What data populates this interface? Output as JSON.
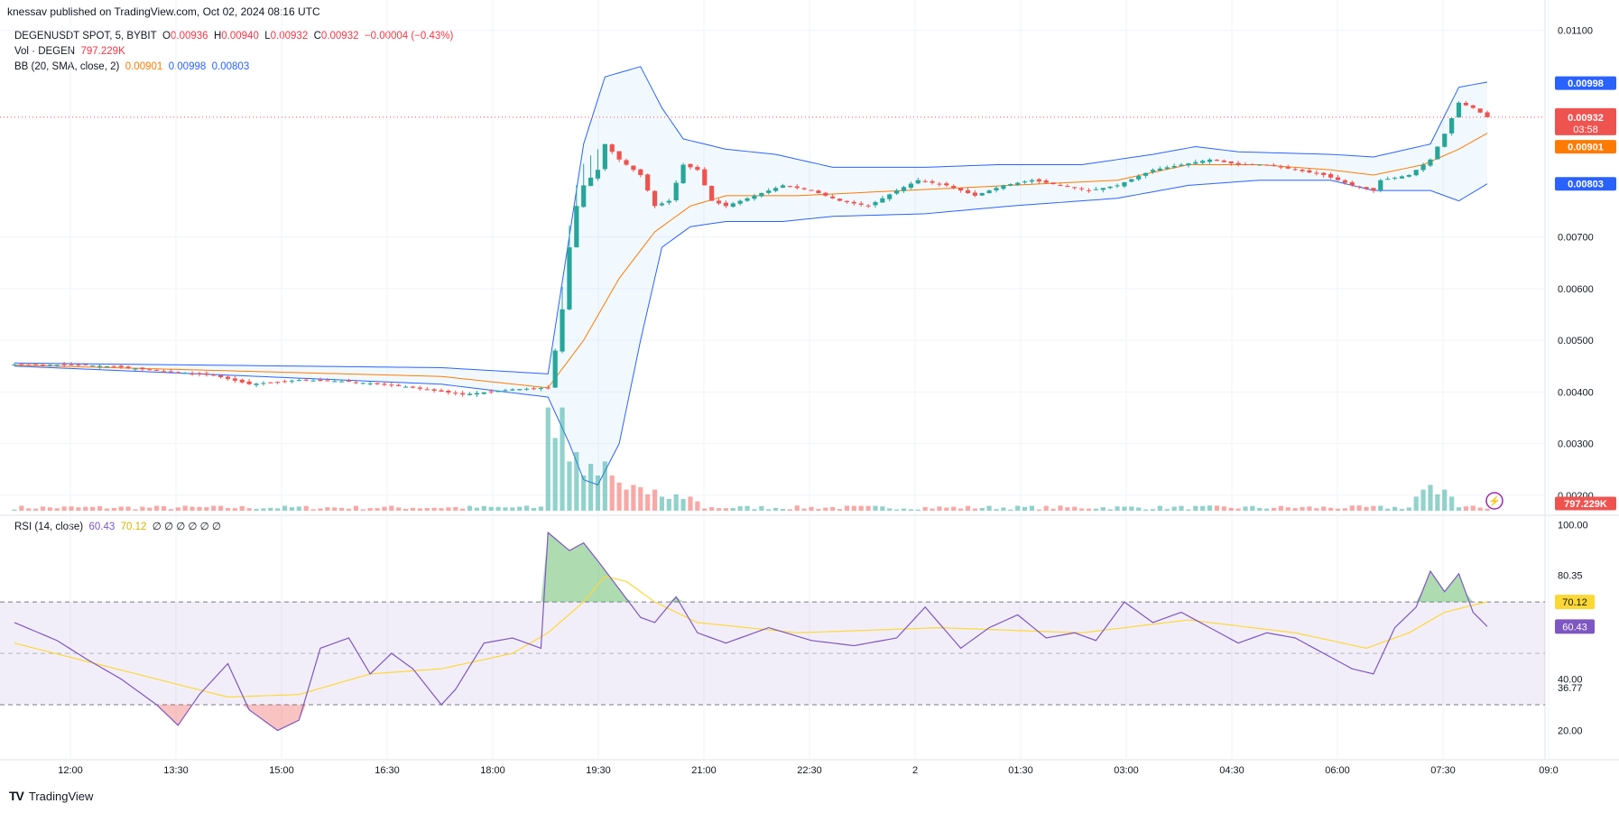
{
  "header": {
    "published_by": "knessav published on TradingView.com, Oct 02, 2024 08:16 UTC"
  },
  "legend": {
    "symbol": "DEGENUSDT SPOT, 5, BYBIT",
    "o_label": "O",
    "o": "0.00936",
    "h_label": "H",
    "h": "0.00940",
    "l_label": "L",
    "l": "0.00932",
    "c_label": "C",
    "c": "0.00932",
    "change": "−0.00004 (−0.43%)",
    "vol_label": "Vol · DEGEN",
    "vol": "797.229K",
    "bb_label": "BB (20, SMA, close, 2)",
    "bb_basis": "0.00901",
    "bb_upper": "0.00998",
    "bb_lower": "0.00803"
  },
  "rsi_legend": {
    "label": "RSI (14, close)",
    "rsi": "60.43",
    "ma": "70.12",
    "extra": "∅ ∅ ∅ ∅ ∅ ∅"
  },
  "footer": {
    "brand": "TradingView"
  },
  "colors": {
    "up": "#26a69a",
    "down": "#ef5350",
    "band": "#2962ff",
    "basis": "#ff7a00",
    "rsi": "#7e57c2",
    "rsi_ma": "#fdd835"
  },
  "chart_data": [
    {
      "type": "candlestick",
      "title": "DEGENUSDT SPOT, 5, BYBIT",
      "x_ticks": [
        "12:00",
        "13:30",
        "15:00",
        "16:30",
        "18:00",
        "19:30",
        "21:00",
        "22:30",
        "2",
        "01:30",
        "03:00",
        "04:30",
        "06:00",
        "07:30",
        "09:0"
      ],
      "y_ticks": [
        "0.01100",
        "0.00700",
        "0.00600",
        "0.00500",
        "0.00400",
        "0.00300",
        "0.00200"
      ],
      "ylim": [
        0.0017,
        0.0111
      ],
      "price_labels": {
        "upper": "0.00998",
        "last": "0.00932",
        "countdown": "03:58",
        "basis": "0.00901",
        "lower": "0.00803",
        "volume": "797.229K"
      },
      "close_anchors": [
        [
          0,
          0.00453
        ],
        [
          10,
          0.00452
        ],
        [
          15,
          0.00448
        ],
        [
          20,
          0.00441
        ],
        [
          28,
          0.00432
        ],
        [
          33,
          0.00415
        ],
        [
          40,
          0.00423
        ],
        [
          47,
          0.0042
        ],
        [
          55,
          0.0041
        ],
        [
          63,
          0.00395
        ],
        [
          70,
          0.00405
        ],
        [
          75,
          0.00408
        ],
        [
          76,
          0.0048
        ],
        [
          77,
          0.0056
        ],
        [
          78,
          0.0068
        ],
        [
          79,
          0.0076
        ],
        [
          80,
          0.008
        ],
        [
          82,
          0.0083
        ],
        [
          83,
          0.0088
        ],
        [
          85,
          0.0085
        ],
        [
          88,
          0.0082
        ],
        [
          90,
          0.0076
        ],
        [
          92,
          0.0077
        ],
        [
          94,
          0.0084
        ],
        [
          96,
          0.0083
        ],
        [
          98,
          0.0077
        ],
        [
          100,
          0.0076
        ],
        [
          104,
          0.0078
        ],
        [
          108,
          0.008
        ],
        [
          112,
          0.0079
        ],
        [
          116,
          0.0077
        ],
        [
          120,
          0.0076
        ],
        [
          124,
          0.0079
        ],
        [
          127,
          0.0081
        ],
        [
          131,
          0.008
        ],
        [
          135,
          0.0078
        ],
        [
          139,
          0.008
        ],
        [
          143,
          0.0081
        ],
        [
          147,
          0.008
        ],
        [
          151,
          0.0079
        ],
        [
          155,
          0.008
        ],
        [
          160,
          0.0083
        ],
        [
          164,
          0.0084
        ],
        [
          168,
          0.0085
        ],
        [
          172,
          0.0084
        ],
        [
          176,
          0.0084
        ],
        [
          180,
          0.0083
        ],
        [
          184,
          0.0082
        ],
        [
          188,
          0.008
        ],
        [
          191,
          0.0079
        ],
        [
          192,
          0.0081
        ],
        [
          196,
          0.0082
        ],
        [
          199,
          0.0085
        ],
        [
          201,
          0.009
        ],
        [
          203,
          0.0096
        ],
        [
          205,
          0.0095
        ],
        [
          207,
          0.00932
        ]
      ],
      "bollinger_upper_anchors": [
        [
          0,
          0.00456
        ],
        [
          60,
          0.00447
        ],
        [
          75,
          0.00435
        ],
        [
          80,
          0.0088
        ],
        [
          83,
          0.0101
        ],
        [
          88,
          0.0103
        ],
        [
          91,
          0.0095
        ],
        [
          94,
          0.0089
        ],
        [
          100,
          0.0087
        ],
        [
          107,
          0.0086
        ],
        [
          115,
          0.00835
        ],
        [
          128,
          0.00835
        ],
        [
          138,
          0.0084
        ],
        [
          150,
          0.0084
        ],
        [
          160,
          0.0086
        ],
        [
          166,
          0.00875
        ],
        [
          172,
          0.00865
        ],
        [
          185,
          0.0086
        ],
        [
          191,
          0.00855
        ],
        [
          199,
          0.0088
        ],
        [
          203,
          0.0099
        ],
        [
          207,
          0.01
        ]
      ],
      "bollinger_basis_anchors": [
        [
          0,
          0.00452
        ],
        [
          60,
          0.0043
        ],
        [
          75,
          0.00408
        ],
        [
          80,
          0.005
        ],
        [
          85,
          0.0062
        ],
        [
          90,
          0.0071
        ],
        [
          95,
          0.0076
        ],
        [
          100,
          0.0078
        ],
        [
          110,
          0.0078
        ],
        [
          125,
          0.0079
        ],
        [
          140,
          0.008
        ],
        [
          155,
          0.0081
        ],
        [
          165,
          0.0084
        ],
        [
          175,
          0.0084
        ],
        [
          185,
          0.0083
        ],
        [
          191,
          0.0082
        ],
        [
          198,
          0.0084
        ],
        [
          203,
          0.0087
        ],
        [
          207,
          0.00901
        ]
      ],
      "bollinger_lower_anchors": [
        [
          0,
          0.0045
        ],
        [
          60,
          0.00415
        ],
        [
          75,
          0.0039
        ],
        [
          78,
          0.003
        ],
        [
          80,
          0.0023
        ],
        [
          82,
          0.0022
        ],
        [
          85,
          0.003
        ],
        [
          88,
          0.005
        ],
        [
          91,
          0.0068
        ],
        [
          95,
          0.0072
        ],
        [
          100,
          0.0073
        ],
        [
          108,
          0.0073
        ],
        [
          115,
          0.0074
        ],
        [
          128,
          0.00745
        ],
        [
          140,
          0.0076
        ],
        [
          155,
          0.00775
        ],
        [
          165,
          0.008
        ],
        [
          175,
          0.0081
        ],
        [
          185,
          0.0081
        ],
        [
          191,
          0.0079
        ],
        [
          199,
          0.0079
        ],
        [
          203,
          0.0077
        ],
        [
          207,
          0.00803
        ]
      ],
      "volume_spikes": [
        [
          75,
          0.88
        ],
        [
          76,
          0.62
        ],
        [
          77,
          0.88
        ],
        [
          78,
          0.42
        ],
        [
          79,
          0.5
        ],
        [
          80,
          0.3
        ],
        [
          81,
          0.4
        ],
        [
          82,
          0.3
        ],
        [
          83,
          0.42
        ],
        [
          84,
          0.3
        ],
        [
          85,
          0.24
        ],
        [
          86,
          0.18
        ],
        [
          87,
          0.22
        ],
        [
          88,
          0.2
        ],
        [
          89,
          0.14
        ],
        [
          90,
          0.18
        ],
        [
          91,
          0.12
        ],
        [
          92,
          0.1
        ],
        [
          93,
          0.14
        ],
        [
          94,
          0.1
        ],
        [
          95,
          0.12
        ],
        [
          96,
          0.08
        ],
        [
          197,
          0.12
        ],
        [
          198,
          0.18
        ],
        [
          199,
          0.22
        ],
        [
          200,
          0.14
        ],
        [
          201,
          0.18
        ],
        [
          202,
          0.12
        ]
      ]
    },
    {
      "type": "line",
      "title": "RSI (14, close)",
      "y_ticks": [
        "100.00",
        "80.35",
        "40.00",
        "36.77",
        "20.00"
      ],
      "ylim": [
        10,
        102
      ],
      "levels": [
        70,
        50,
        30
      ],
      "value_labels": {
        "ma": "70.12",
        "rsi": "60.43"
      },
      "rsi_anchors": [
        [
          0,
          62
        ],
        [
          6,
          55
        ],
        [
          10,
          48
        ],
        [
          15,
          40
        ],
        [
          20,
          30
        ],
        [
          23,
          22
        ],
        [
          26,
          34
        ],
        [
          30,
          46
        ],
        [
          33,
          28
        ],
        [
          37,
          20
        ],
        [
          40,
          24
        ],
        [
          43,
          52
        ],
        [
          47,
          56
        ],
        [
          50,
          42
        ],
        [
          53,
          50
        ],
        [
          56,
          44
        ],
        [
          60,
          30
        ],
        [
          62,
          36
        ],
        [
          66,
          54
        ],
        [
          70,
          56
        ],
        [
          74,
          52
        ],
        [
          75,
          97
        ],
        [
          78,
          90
        ],
        [
          80,
          93
        ],
        [
          82,
          86
        ],
        [
          85,
          75
        ],
        [
          88,
          64
        ],
        [
          90,
          62
        ],
        [
          93,
          72
        ],
        [
          96,
          58
        ],
        [
          100,
          54
        ],
        [
          106,
          60
        ],
        [
          112,
          55
        ],
        [
          118,
          53
        ],
        [
          124,
          56
        ],
        [
          128,
          68
        ],
        [
          133,
          52
        ],
        [
          137,
          60
        ],
        [
          141,
          65
        ],
        [
          145,
          56
        ],
        [
          149,
          58
        ],
        [
          152,
          55
        ],
        [
          156,
          70
        ],
        [
          160,
          62
        ],
        [
          164,
          66
        ],
        [
          168,
          60
        ],
        [
          172,
          54
        ],
        [
          176,
          58
        ],
        [
          180,
          56
        ],
        [
          184,
          50
        ],
        [
          188,
          44
        ],
        [
          191,
          42
        ],
        [
          194,
          60
        ],
        [
          197,
          68
        ],
        [
          199,
          82
        ],
        [
          201,
          74
        ],
        [
          203,
          81
        ],
        [
          205,
          66
        ],
        [
          207,
          60.43
        ]
      ],
      "ma_anchors": [
        [
          0,
          54
        ],
        [
          20,
          40
        ],
        [
          30,
          33
        ],
        [
          40,
          34
        ],
        [
          50,
          42
        ],
        [
          60,
          44
        ],
        [
          70,
          50
        ],
        [
          75,
          58
        ],
        [
          80,
          70
        ],
        [
          83,
          80
        ],
        [
          86,
          78
        ],
        [
          90,
          70
        ],
        [
          96,
          62
        ],
        [
          110,
          58
        ],
        [
          130,
          60
        ],
        [
          150,
          58
        ],
        [
          165,
          63
        ],
        [
          180,
          58
        ],
        [
          190,
          52
        ],
        [
          196,
          58
        ],
        [
          201,
          66
        ],
        [
          207,
          70.12
        ]
      ]
    }
  ]
}
